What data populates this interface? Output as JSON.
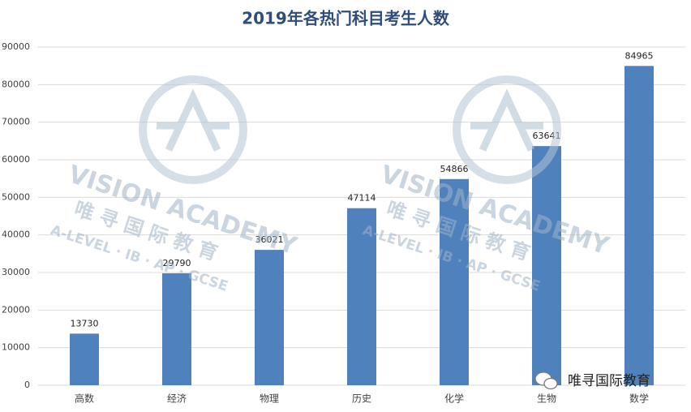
{
  "chart_data": {
    "type": "bar",
    "title": "2019年各热门科目考生人数",
    "categories": [
      "高数",
      "经济",
      "物理",
      "历史",
      "化学",
      "生物",
      "数学"
    ],
    "values": [
      13730,
      29790,
      36021,
      47114,
      54866,
      63641,
      84965
    ],
    "color": "#4f81bd",
    "ylim": [
      0,
      90000
    ],
    "yticks": [
      0,
      10000,
      20000,
      30000,
      40000,
      50000,
      60000,
      70000,
      80000,
      90000
    ],
    "grid": true
  },
  "watermark": {
    "brand": "VISION ACADEMY",
    "name": "唯寻国际教育",
    "tagline": "A-LEVEL · IB · AP · GCSE"
  },
  "footer_logo": "唯寻国际教育"
}
